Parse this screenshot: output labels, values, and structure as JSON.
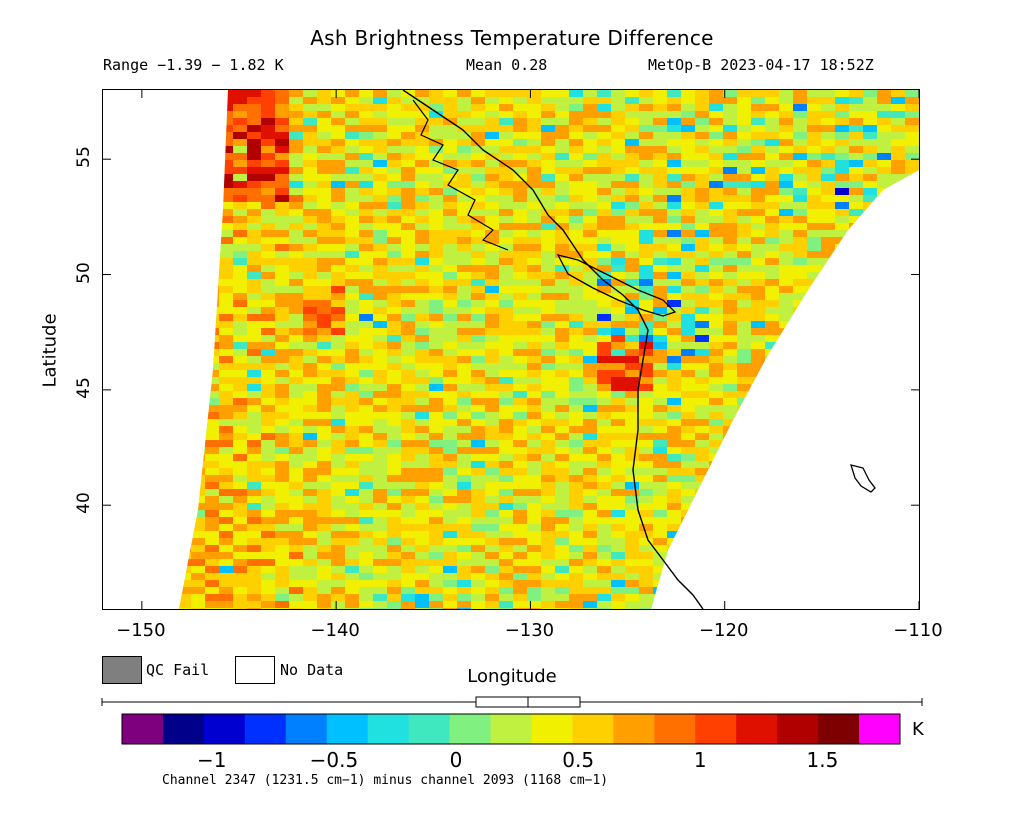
{
  "title": "Ash Brightness Temperature Difference",
  "header": {
    "range": "Range −1.39 − 1.82 K",
    "mean": "Mean 0.28",
    "satellite_time": "MetOp-B 2023-04-17 18:52Z"
  },
  "axes": {
    "x_title": "Longitude",
    "y_title": "Latitude",
    "x_ticks": [
      "−150",
      "−140",
      "−130",
      "−120",
      "−110"
    ],
    "y_ticks": [
      "55",
      "50",
      "45",
      "40"
    ],
    "x_range": [
      -152,
      -110
    ],
    "y_range": [
      35.5,
      58
    ]
  },
  "legend": {
    "qc_fail_label": "QC Fail",
    "no_data_label": "No Data",
    "qc_fail_color": "#7f7f7f",
    "no_data_color": "#ffffff"
  },
  "colorbar": {
    "unit": "K",
    "tick_labels": [
      "−1",
      "−0.5",
      "0",
      "0.5",
      "1",
      "1.5"
    ],
    "tick_values": [
      -1,
      -0.5,
      0,
      0.5,
      1,
      1.5
    ],
    "range": [
      -1.2,
      1.65
    ],
    "colors": [
      "#7f007f",
      "#00008b",
      "#0000d0",
      "#0030ff",
      "#0080ff",
      "#00c0ff",
      "#20e0e0",
      "#40e8c0",
      "#80f080",
      "#c0f040",
      "#f0f000",
      "#ffd000",
      "#ffa000",
      "#ff7000",
      "#ff4000",
      "#e01000",
      "#b00000",
      "#7f0000",
      "#ff00ff"
    ]
  },
  "footnote": "Channel 2347 (1231.5 cm−1) minus channel 2093 (1168 cm−1)"
}
